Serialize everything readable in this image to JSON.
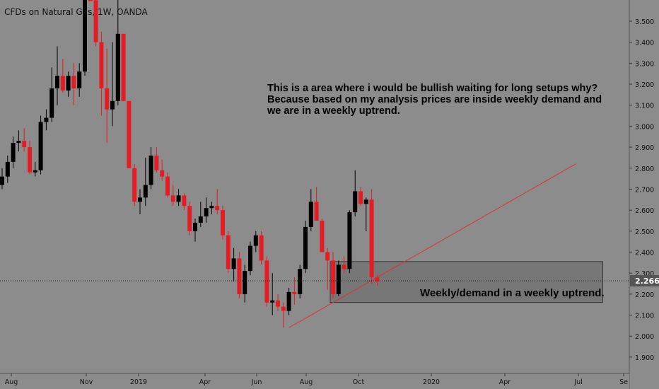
{
  "chart_data": {
    "type": "candlestick",
    "title": "CFDs on Natural Gas, 1W, OANDA",
    "current_price": "2.266",
    "ylim": [
      1.84,
      3.64
    ],
    "y_ticks": [
      "1.900",
      "2.000",
      "2.100",
      "2.200",
      "2.300",
      "2.400",
      "2.500",
      "2.600",
      "2.700",
      "2.800",
      "2.900",
      "3.000",
      "3.100",
      "3.200",
      "3.300",
      "3.400",
      "3.500"
    ],
    "x_ticks": [
      "Aug",
      "Nov",
      "2019",
      "Apr",
      "Jun",
      "Aug",
      "Oct",
      "2020",
      "Apr",
      "Jul",
      "Se"
    ],
    "colors": {
      "up": "#000000",
      "down": "#e51c23",
      "trendline": "#e03030",
      "zone": "#777777",
      "background": "#8c8c8c"
    },
    "candles": [
      [
        2.72,
        2.8,
        2.7,
        2.76
      ],
      [
        2.76,
        2.86,
        2.73,
        2.83
      ],
      [
        2.83,
        2.95,
        2.8,
        2.92
      ],
      [
        2.92,
        2.98,
        2.88,
        2.93
      ],
      [
        2.93,
        2.99,
        2.88,
        2.9
      ],
      [
        2.9,
        2.93,
        2.77,
        2.78
      ],
      [
        2.78,
        2.83,
        2.76,
        2.79
      ],
      [
        2.79,
        3.05,
        2.77,
        3.02
      ],
      [
        3.02,
        3.08,
        2.98,
        3.04
      ],
      [
        3.04,
        3.28,
        3.02,
        3.18
      ],
      [
        3.18,
        3.38,
        3.1,
        3.24
      ],
      [
        3.24,
        3.32,
        3.16,
        3.17
      ],
      [
        3.17,
        3.26,
        3.14,
        3.24
      ],
      [
        3.24,
        3.3,
        3.1,
        3.18
      ],
      [
        3.18,
        3.3,
        3.14,
        3.26
      ],
      [
        3.26,
        3.85,
        3.24,
        3.82
      ],
      [
        3.82,
        4.1,
        3.6,
        3.6
      ],
      [
        3.6,
        3.72,
        3.38,
        3.4
      ],
      [
        3.4,
        3.45,
        3.05,
        3.18
      ],
      [
        3.18,
        3.37,
        2.92,
        3.08
      ],
      [
        3.08,
        3.4,
        3.0,
        3.12
      ],
      [
        3.12,
        3.65,
        3.1,
        3.44
      ],
      [
        3.44,
        3.44,
        3.12,
        3.12
      ],
      [
        3.12,
        3.12,
        2.8,
        2.8
      ],
      [
        2.8,
        2.82,
        2.62,
        2.64
      ],
      [
        2.64,
        2.7,
        2.58,
        2.66
      ],
      [
        2.66,
        2.85,
        2.62,
        2.72
      ],
      [
        2.72,
        2.9,
        2.7,
        2.86
      ],
      [
        2.86,
        2.9,
        2.78,
        2.79
      ],
      [
        2.79,
        2.84,
        2.74,
        2.76
      ],
      [
        2.76,
        2.78,
        2.66,
        2.67
      ],
      [
        2.67,
        2.72,
        2.62,
        2.64
      ],
      [
        2.64,
        2.7,
        2.62,
        2.67
      ],
      [
        2.67,
        2.68,
        2.6,
        2.62
      ],
      [
        2.62,
        2.64,
        2.48,
        2.5
      ],
      [
        2.5,
        2.56,
        2.45,
        2.54
      ],
      [
        2.54,
        2.64,
        2.52,
        2.57
      ],
      [
        2.57,
        2.66,
        2.54,
        2.61
      ],
      [
        2.61,
        2.64,
        2.58,
        2.62
      ],
      [
        2.62,
        2.7,
        2.58,
        2.6
      ],
      [
        2.6,
        2.62,
        2.46,
        2.48
      ],
      [
        2.48,
        2.5,
        2.3,
        2.32
      ],
      [
        2.32,
        2.42,
        2.26,
        2.37
      ],
      [
        2.37,
        2.4,
        2.18,
        2.2
      ],
      [
        2.2,
        2.34,
        2.16,
        2.31
      ],
      [
        2.31,
        2.45,
        2.29,
        2.43
      ],
      [
        2.43,
        2.5,
        2.4,
        2.48
      ],
      [
        2.48,
        2.5,
        2.34,
        2.36
      ],
      [
        2.36,
        2.38,
        2.14,
        2.16
      ],
      [
        2.16,
        2.3,
        2.1,
        2.17
      ],
      [
        2.17,
        2.2,
        2.12,
        2.14
      ],
      [
        2.14,
        2.16,
        2.04,
        2.12
      ],
      [
        2.12,
        2.23,
        2.1,
        2.21
      ],
      [
        2.21,
        2.28,
        2.15,
        2.2
      ],
      [
        2.2,
        2.34,
        2.18,
        2.32
      ],
      [
        2.32,
        2.55,
        2.3,
        2.52
      ],
      [
        2.52,
        2.7,
        2.5,
        2.64
      ],
      [
        2.64,
        2.71,
        2.55,
        2.55
      ],
      [
        2.55,
        2.56,
        2.4,
        2.4
      ],
      [
        2.4,
        2.42,
        2.22,
        2.36
      ],
      [
        2.36,
        2.4,
        2.18,
        2.2
      ],
      [
        2.2,
        2.36,
        2.19,
        2.34
      ],
      [
        2.34,
        2.38,
        2.3,
        2.32
      ],
      [
        2.32,
        2.6,
        2.3,
        2.59
      ],
      [
        2.59,
        2.79,
        2.57,
        2.69
      ],
      [
        2.69,
        2.71,
        2.62,
        2.63
      ],
      [
        2.63,
        2.66,
        2.5,
        2.65
      ],
      [
        2.65,
        2.7,
        2.25,
        2.28
      ],
      [
        2.28,
        2.29,
        2.24,
        2.26
      ]
    ],
    "trendline": [
      [
        52,
        2.04
      ],
      [
        104,
        2.82
      ]
    ],
    "zone": {
      "from_index": 60,
      "to_index": 108,
      "y0": 2.16,
      "y1": 2.355
    },
    "annotations": [
      "This is a area where i would be bullish waiting for long setups why? Because based on my analysis prices are inside weekly demand and we are in a weekly uptrend.",
      "Weekly/demand in a weekly uptrend."
    ]
  }
}
